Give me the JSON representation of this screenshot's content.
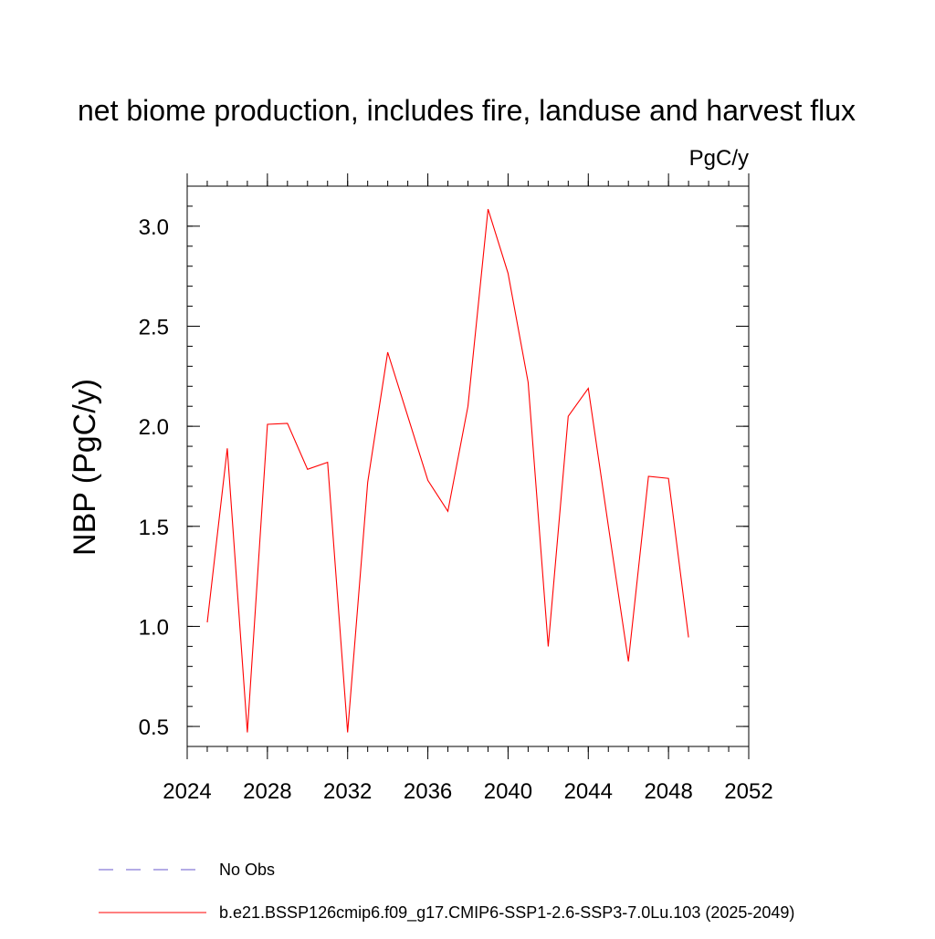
{
  "chart_data": {
    "type": "line",
    "title": "net biome production, includes fire, landuse and harvest flux",
    "units_label": "PgC/y",
    "ylabel": "NBP  (PgC/y)",
    "xlabel": "",
    "xlim": [
      2024,
      2052
    ],
    "ylim": [
      0.4,
      3.2
    ],
    "x_ticks": [
      2024,
      2028,
      2032,
      2036,
      2040,
      2044,
      2048,
      2052
    ],
    "x_tick_labels": [
      "2024",
      "2028",
      "2032",
      "2036",
      "2040",
      "2044",
      "2048",
      "2052"
    ],
    "y_ticks": [
      0.5,
      1.0,
      1.5,
      2.0,
      2.5,
      3.0
    ],
    "y_tick_labels": [
      "0.5",
      "1.0",
      "1.5",
      "2.0",
      "2.5",
      "3.0"
    ],
    "x_minor_step": 1,
    "y_minor_step": 0.1,
    "grid": false,
    "legend_placement": "bottom",
    "series": [
      {
        "name": "b.e21.BSSP126cmip6.f09_g17.CMIP6-SSP1-2.6-SSP3-7.0Lu.103 (2025-2049)",
        "color": "#ff0000",
        "style": "solid",
        "x": [
          2025,
          2026,
          2027,
          2028,
          2029,
          2030,
          2031,
          2032,
          2033,
          2034,
          2035,
          2036,
          2037,
          2038,
          2039,
          2040,
          2041,
          2042,
          2043,
          2044,
          2045,
          2046,
          2047,
          2048,
          2049
        ],
        "values": [
          1.02,
          1.89,
          0.47,
          2.01,
          2.015,
          1.785,
          1.82,
          0.47,
          1.72,
          2.37,
          2.05,
          1.73,
          1.575,
          2.1,
          3.085,
          2.765,
          2.22,
          0.9,
          2.05,
          2.19,
          1.5,
          0.825,
          1.75,
          1.74,
          0.945
        ]
      }
    ],
    "legend": [
      {
        "label": "No Obs",
        "color": "#6a5acd",
        "style": "dashed"
      },
      {
        "label": "b.e21.BSSP126cmip6.f09_g17.CMIP6-SSP1-2.6-SSP3-7.0Lu.103 (2025-2049)",
        "color": "#ff0000",
        "style": "solid"
      }
    ]
  }
}
